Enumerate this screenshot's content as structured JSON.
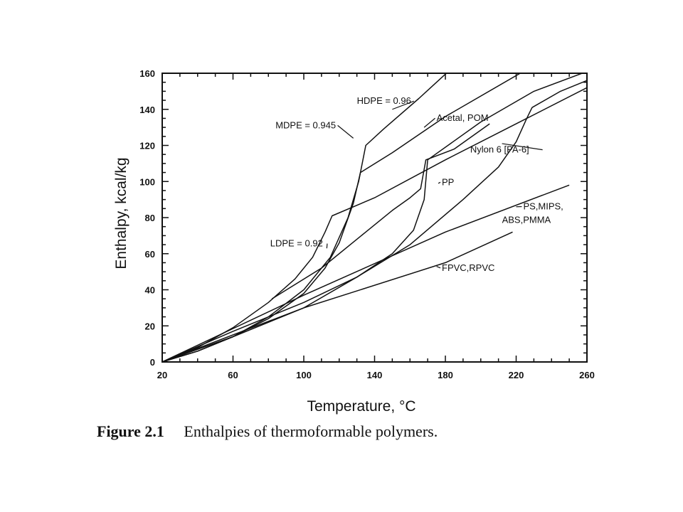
{
  "chart_data": {
    "type": "line",
    "xlabel": "Temperature, °C",
    "ylabel": "Enthalpy, kcal/kg",
    "xlim": [
      20,
      260
    ],
    "ylim": [
      0,
      160
    ],
    "x_ticks": [
      20,
      60,
      100,
      140,
      180,
      220,
      260
    ],
    "y_ticks": [
      0,
      20,
      40,
      60,
      80,
      100,
      120,
      140,
      160
    ],
    "grid": false,
    "series": [
      {
        "name": "HDPE = 0.96",
        "points": [
          [
            20,
            0
          ],
          [
            40,
            6
          ],
          [
            60,
            14
          ],
          [
            80,
            25
          ],
          [
            100,
            40
          ],
          [
            115,
            58
          ],
          [
            125,
            80
          ],
          [
            131,
            100
          ],
          [
            135,
            120
          ],
          [
            145,
            129
          ],
          [
            165,
            146
          ],
          [
            185,
            164
          ]
        ]
      },
      {
        "name": "MDPE = 0.945",
        "points": [
          [
            20,
            0
          ],
          [
            40,
            6
          ],
          [
            60,
            14
          ],
          [
            80,
            24
          ],
          [
            100,
            38
          ],
          [
            112,
            52
          ],
          [
            120,
            66
          ],
          [
            128,
            88
          ],
          [
            132,
            105
          ],
          [
            150,
            116
          ],
          [
            180,
            136
          ],
          [
            224,
            161
          ]
        ]
      },
      {
        "name": "LDPE = 0.92",
        "points": [
          [
            20,
            0
          ],
          [
            40,
            8
          ],
          [
            60,
            19
          ],
          [
            80,
            33
          ],
          [
            95,
            46
          ],
          [
            105,
            58
          ],
          [
            112,
            72
          ],
          [
            116,
            81
          ],
          [
            140,
            91
          ],
          [
            180,
            112
          ],
          [
            220,
            132
          ],
          [
            260,
            152
          ]
        ]
      },
      {
        "name": "Acetal, POM",
        "points": [
          [
            82,
            35
          ],
          [
            110,
            52
          ],
          [
            135,
            72
          ],
          [
            150,
            84
          ],
          [
            160,
            91
          ],
          [
            166,
            96
          ],
          [
            169,
            112
          ],
          [
            185,
            118
          ],
          [
            205,
            132
          ]
        ]
      },
      {
        "name": "PP",
        "points": [
          [
            20,
            0
          ],
          [
            60,
            17
          ],
          [
            100,
            33
          ],
          [
            130,
            47
          ],
          [
            150,
            60
          ],
          [
            162,
            73
          ],
          [
            168,
            90
          ],
          [
            170,
            112
          ],
          [
            200,
            133
          ],
          [
            230,
            150
          ],
          [
            260,
            161
          ]
        ]
      },
      {
        "name": "Nylon 6 [PA-6]",
        "points": [
          [
            20,
            0
          ],
          [
            60,
            14
          ],
          [
            100,
            30
          ],
          [
            130,
            47
          ],
          [
            160,
            65
          ],
          [
            190,
            90
          ],
          [
            210,
            108
          ],
          [
            220,
            122
          ],
          [
            226,
            135
          ],
          [
            229,
            141
          ],
          [
            245,
            150
          ],
          [
            260,
            156
          ]
        ]
      },
      {
        "name": "PS,MIPS,\nABS,PMMA",
        "points": [
          [
            20,
            0
          ],
          [
            100,
            37
          ],
          [
            180,
            72
          ],
          [
            250,
            98
          ]
        ]
      },
      {
        "name": "FPVC,RPVC",
        "points": [
          [
            20,
            0
          ],
          [
            100,
            30
          ],
          [
            180,
            55
          ],
          [
            218,
            72
          ]
        ]
      }
    ],
    "annotations": [
      {
        "text": "HDPE = 0.96",
        "tx": 130,
        "ty": 143,
        "ax": 150,
        "ay": 140
      },
      {
        "text": "MDPE = 0.945",
        "tx": 84,
        "ty": 129.5,
        "ax": 128,
        "ay": 124
      },
      {
        "text": "Acetal, POM",
        "tx": 175,
        "ty": 133.5,
        "ax": 168,
        "ay": 130
      },
      {
        "text": "Nylon 6 [PA-6]",
        "tx": 194,
        "ty": 116,
        "ax": 212,
        "ay": 121
      },
      {
        "text": "PP",
        "tx": 178,
        "ty": 98,
        "ax": 176,
        "ay": 99
      },
      {
        "text": "LDPE = 0.92",
        "tx": 81,
        "ty": 64,
        "ax": 113,
        "ay": 63
      },
      {
        "text": "PS,MIPS,",
        "tx": 224,
        "ty": 84.5,
        "ax": 220,
        "ay": 86
      },
      {
        "text": "ABS,PMMA",
        "tx": 212,
        "ty": 77,
        "ax": null,
        "ay": null
      },
      {
        "text": "FPVC,RPVC",
        "tx": 178,
        "ty": 50.5,
        "ax": 175,
        "ay": 53
      }
    ]
  },
  "caption": {
    "label": "Figure 2.1",
    "text": "Enthalpies of thermoformable polymers."
  }
}
